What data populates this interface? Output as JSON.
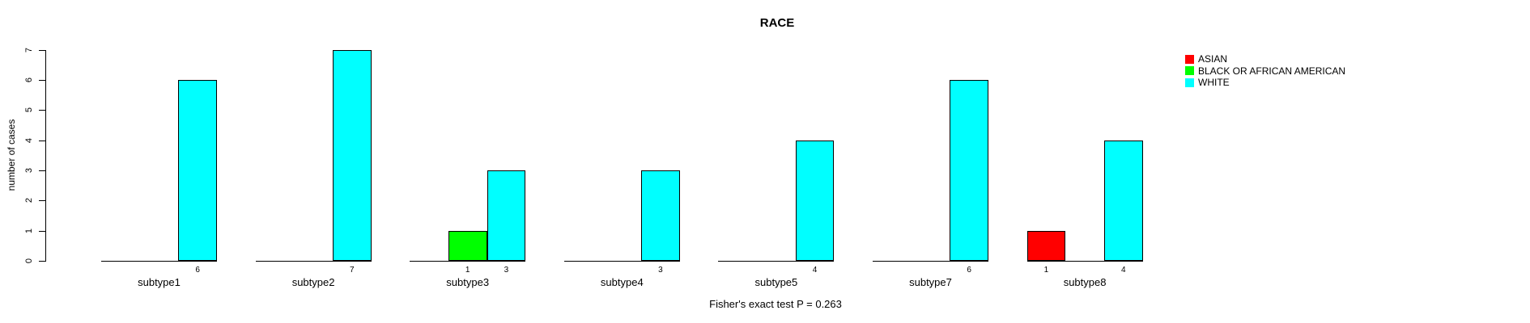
{
  "chart_data": {
    "type": "bar",
    "title": "RACE",
    "ylabel": "number of cases",
    "footer": "Fisher's exact test P = 0.263",
    "ylim": [
      0,
      7
    ],
    "yticks": [
      0,
      1,
      2,
      3,
      4,
      5,
      6,
      7
    ],
    "grid": false,
    "legend_position": "top-right",
    "categories": [
      "subtype1",
      "subtype2",
      "subtype3",
      "subtype4",
      "subtype5",
      "subtype7",
      "subtype8"
    ],
    "series": [
      {
        "name": "ASIAN",
        "color": "#ff0000",
        "values": [
          0,
          0,
          0,
          0,
          0,
          0,
          1
        ]
      },
      {
        "name": "BLACK OR AFRICAN AMERICAN",
        "color": "#00ff00",
        "values": [
          0,
          0,
          1,
          0,
          0,
          0,
          0
        ]
      },
      {
        "name": "WHITE",
        "color": "#00ffff",
        "values": [
          6,
          7,
          3,
          3,
          4,
          6,
          4
        ]
      }
    ],
    "bar_value_labels": "shown below baseline for each non-zero bar"
  }
}
